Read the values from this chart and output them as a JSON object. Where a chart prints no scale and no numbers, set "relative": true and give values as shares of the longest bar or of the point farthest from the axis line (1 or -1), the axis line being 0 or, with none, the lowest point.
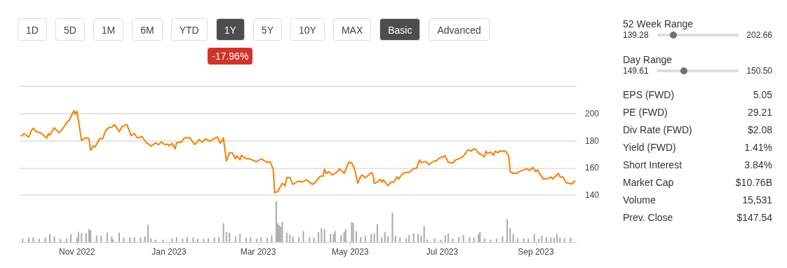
{
  "chart_data": [
    {
      "type": "line",
      "annotations": [
        "1D",
        "5D",
        "1M",
        "6M",
        "YTD",
        "1Y",
        "5Y",
        "10Y",
        "MAX",
        "Basic",
        "Advanced",
        "-17.96%"
      ],
      "x": [
        "2022-09-25",
        "2022-09-27",
        "2022-09-30",
        "2022-10-02",
        "2022-10-03",
        "2022-10-05",
        "2022-10-08",
        "2022-10-12",
        "2022-10-13",
        "2022-10-14",
        "2022-10-17",
        "2022-10-20",
        "2022-10-23",
        "2022-10-25",
        "2022-10-27",
        "2022-10-30",
        "2022-10-31",
        "2022-11-01",
        "2022-11-04",
        "2022-11-07",
        "2022-11-09",
        "2022-11-10",
        "2022-11-12",
        "2022-11-13",
        "2022-11-16",
        "2022-11-18",
        "2022-11-20",
        "2022-11-22",
        "2022-11-24",
        "2022-11-26",
        "2022-11-29",
        "2022-12-01",
        "2022-12-04",
        "2022-12-05",
        "2022-12-07",
        "2022-12-09",
        "2022-12-11",
        "2022-12-14",
        "2022-12-17",
        "2022-12-18",
        "2022-12-20",
        "2022-12-23",
        "2022-12-25",
        "2022-12-27",
        "2022-12-29",
        "2022-12-31",
        "2023-01-01",
        "2023-01-03",
        "2023-01-05",
        "2023-01-06",
        "2023-01-09",
        "2023-01-11",
        "2023-01-13",
        "2023-01-15",
        "2023-01-18",
        "2023-01-21",
        "2023-01-23",
        "2023-01-25",
        "2023-01-28",
        "2023-02-02",
        "2023-02-04",
        "2023-02-06",
        "2023-02-08",
        "2023-02-10",
        "2023-02-12",
        "2023-02-14",
        "2023-02-15",
        "2023-02-17",
        "2023-02-18",
        "2023-02-21",
        "2023-02-23",
        "2023-02-25",
        "2023-02-28",
        "2023-03-03",
        "2023-03-07",
        "2023-03-09",
        "2023-03-11",
        "2023-03-12",
        "2023-03-14",
        "2023-03-17",
        "2023-03-19",
        "2023-03-20",
        "2023-03-22",
        "2023-03-24",
        "2023-03-27",
        "2023-03-28",
        "2023-03-30",
        "2023-04-02",
        "2023-04-06",
        "2023-04-08",
        "2023-04-11",
        "2023-04-13",
        "2023-04-14",
        "2023-04-15",
        "2023-04-17",
        "2023-04-19",
        "2023-04-22",
        "2023-04-24",
        "2023-04-27",
        "2023-04-30",
        "2023-05-02",
        "2023-05-04",
        "2023-05-06",
        "2023-05-08",
        "2023-05-09",
        "2023-05-11",
        "2023-05-15",
        "2023-05-16",
        "2023-05-17",
        "2023-05-19",
        "2023-05-21",
        "2023-05-22",
        "2023-05-23",
        "2023-05-26",
        "2023-05-28",
        "2023-05-30",
        "2023-06-01",
        "2023-06-02",
        "2023-06-05",
        "2023-06-07",
        "2023-06-09",
        "2023-06-12",
        "2023-06-14",
        "2023-06-16",
        "2023-06-17",
        "2023-06-20",
        "2023-06-22",
        "2023-06-26",
        "2023-06-27",
        "2023-06-29",
        "2023-07-03",
        "2023-07-05",
        "2023-07-08",
        "2023-07-10",
        "2023-07-13",
        "2023-07-15",
        "2023-07-18",
        "2023-07-20",
        "2023-07-22",
        "2023-07-23",
        "2023-07-25",
        "2023-07-29",
        "2023-07-30",
        "2023-07-31",
        "2023-08-02",
        "2023-08-04",
        "2023-08-05",
        "2023-08-07",
        "2023-08-08",
        "2023-08-12",
        "2023-08-14",
        "2023-08-15",
        "2023-08-17",
        "2023-08-20",
        "2023-08-21",
        "2023-08-24",
        "2023-08-26",
        "2023-08-28",
        "2023-08-30",
        "2023-09-01",
        "2023-09-02",
        "2023-09-06",
        "2023-09-09",
        "2023-09-11",
        "2023-09-12",
        "2023-09-16",
        "2023-09-17",
        "2023-09-19",
        "2023-09-21",
        "2023-09-25",
        "2023-09-27"
      ],
      "series": [
        {
          "color": "#f77f00",
          "values": [
            183.1,
            185.2,
            182.6,
            187.8,
            189.1,
            186.6,
            185.7,
            181.9,
            185.3,
            184.0,
            189.5,
            185.7,
            189.5,
            193.1,
            195.2,
            202.1,
            199.5,
            201.6,
            180.2,
            182.2,
            181.4,
            172.8,
            176.2,
            175.3,
            181.4,
            181.4,
            187.4,
            189.5,
            190.0,
            191.7,
            186.6,
            190.5,
            191.9,
            189.1,
            183.6,
            185.3,
            181.9,
            183.1,
            178.3,
            177.9,
            175.9,
            178.4,
            177.1,
            179.1,
            177.1,
            177.4,
            176.2,
            177.9,
            174.1,
            178.4,
            178.8,
            181.9,
            182.2,
            181.9,
            177.1,
            180.9,
            178.8,
            181.4,
            179.5,
            182.8,
            177.9,
            181.9,
            165.0,
            171.0,
            171.0,
            166.7,
            168.8,
            165.9,
            169.3,
            166.7,
            166.7,
            165.9,
            164.5,
            166.7,
            164.1,
            164.5,
            159.0,
            141.7,
            142.6,
            148.6,
            146.9,
            152.9,
            152.9,
            147.8,
            149.8,
            150.3,
            149.5,
            151.2,
            147.8,
            149.5,
            153.8,
            153.8,
            159.0,
            156.0,
            157.2,
            154.7,
            156.7,
            159.3,
            156.0,
            164.1,
            163.6,
            159.0,
            148.6,
            153.8,
            154.7,
            152.6,
            156.4,
            155.5,
            148.6,
            149.5,
            151.7,
            149.5,
            151.2,
            146.9,
            149.5,
            149.5,
            153.4,
            151.7,
            156.0,
            156.7,
            156.7,
            159.5,
            159.8,
            165.9,
            163.8,
            164.7,
            162.4,
            165.3,
            165.0,
            167.1,
            168.8,
            164.1,
            163.6,
            165.9,
            167.1,
            168.5,
            173.3,
            172.3,
            174.0,
            173.7,
            171.0,
            168.1,
            172.3,
            170.6,
            171.6,
            169.3,
            172.3,
            171.0,
            172.4,
            172.3,
            168.8,
            157.2,
            156.0,
            156.0,
            157.2,
            158.5,
            159.3,
            158.1,
            160.3,
            157.2,
            158.5,
            151.7,
            152.1,
            153.3,
            151.7,
            155.9,
            153.3,
            153.3,
            149.2,
            148.1,
            150.7
          ]
        }
      ],
      "xlim": [
        "2022-09-24",
        "2023-09-28"
      ],
      "ylim": [
        140,
        220
      ],
      "yticks": [
        140,
        160,
        180,
        200,
        {
          "value": 220,
          "label": null
        }
      ],
      "grid": "y",
      "tick_labels": "y"
    },
    {
      "type": "bar",
      "relative": true,
      "color": "#aaaaaa",
      "x": [
        "2022-09-26",
        "2022-09-30",
        "2022-10-03",
        "2022-10-07",
        "2022-10-11",
        "2022-10-14",
        "2022-10-17",
        "2022-10-21",
        "2022-10-25",
        "2022-10-28",
        "2022-11-01",
        "2022-11-02",
        "2022-11-04",
        "2022-11-07",
        "2022-11-09",
        "2022-11-10",
        "2022-11-14",
        "2022-11-17",
        "2022-11-21",
        "2022-11-24",
        "2022-11-25",
        "2022-11-29",
        "2022-12-02",
        "2022-12-06",
        "2022-12-09",
        "2022-12-13",
        "2022-12-16",
        "2022-12-18",
        "2022-12-20",
        "2022-12-23",
        "2022-12-28",
        "2023-01-03",
        "2023-01-06",
        "2023-01-10",
        "2023-01-13",
        "2023-01-17",
        "2023-01-20",
        "2023-01-24",
        "2023-01-27",
        "2023-01-31",
        "2023-02-03",
        "2023-02-06",
        "2023-02-08",
        "2023-02-10",
        "2023-02-14",
        "2023-02-17",
        "2023-02-21",
        "2023-02-24",
        "2023-02-28",
        "2023-03-03",
        "2023-03-07",
        "2023-03-10",
        "2023-03-13",
        "2023-03-14",
        "2023-03-15",
        "2023-03-16",
        "2023-03-17",
        "2023-03-20",
        "2023-03-22",
        "2023-03-24",
        "2023-03-28",
        "2023-03-31",
        "2023-04-04",
        "2023-04-07",
        "2023-04-10",
        "2023-04-12",
        "2023-04-14",
        "2023-04-18",
        "2023-04-20",
        "2023-04-21",
        "2023-04-25",
        "2023-04-27",
        "2023-04-28",
        "2023-05-02",
        "2023-05-03",
        "2023-05-05",
        "2023-05-08",
        "2023-05-11",
        "2023-05-15",
        "2023-05-17",
        "2023-05-19",
        "2023-05-22",
        "2023-05-24",
        "2023-05-26",
        "2023-05-29",
        "2023-05-31",
        "2023-06-03",
        "2023-06-07",
        "2023-06-09",
        "2023-06-12",
        "2023-06-15",
        "2023-06-17",
        "2023-06-19",
        "2023-06-21",
        "2023-06-26",
        "2023-06-30",
        "2023-07-03",
        "2023-07-05",
        "2023-07-08",
        "2023-07-12",
        "2023-07-15",
        "2023-07-19",
        "2023-07-22",
        "2023-07-25",
        "2023-07-26",
        "2023-07-29",
        "2023-08-02",
        "2023-08-06",
        "2023-08-10",
        "2023-08-13",
        "2023-08-15",
        "2023-08-17",
        "2023-08-20",
        "2023-08-24",
        "2023-08-27",
        "2023-08-31",
        "2023-09-03",
        "2023-09-05",
        "2023-09-08",
        "2023-09-11",
        "2023-09-13",
        "2023-09-15",
        "2023-09-17",
        "2023-09-20",
        "2023-09-24"
      ],
      "values": [
        0.08,
        0.11,
        0.12,
        0.08,
        0.11,
        0.2,
        0.14,
        0.08,
        0.09,
        0.19,
        0.11,
        0.25,
        0.21,
        0.22,
        0.32,
        0.28,
        0.16,
        0.15,
        0.23,
        0.14,
        0.06,
        0.23,
        0.11,
        0.11,
        0.12,
        0.11,
        0.14,
        0.42,
        0.09,
        0.06,
        0.06,
        0.09,
        0.12,
        0.08,
        0.12,
        0.11,
        0.08,
        0.08,
        0.09,
        0.11,
        0.12,
        0.46,
        0.25,
        0.23,
        0.14,
        0.2,
        0.11,
        0.12,
        0.08,
        0.11,
        0.11,
        0.16,
        1,
        0.46,
        0.41,
        0.38,
        0.49,
        0.23,
        0.19,
        0.14,
        0.12,
        0.27,
        0.12,
        0.11,
        0.24,
        0.34,
        0.31,
        0.2,
        0.2,
        0.27,
        0.17,
        0.25,
        0.32,
        0.49,
        0.47,
        0.27,
        0.12,
        0.15,
        0.2,
        0.21,
        0.44,
        0.12,
        0.25,
        0.14,
        0.72,
        0.15,
        0.11,
        0.09,
        0.17,
        0.21,
        0.2,
        0.16,
        0.39,
        0.06,
        0.09,
        0.05,
        0.17,
        0.21,
        0.09,
        0.12,
        0.17,
        0.12,
        0.11,
        0.19,
        0.25,
        0.09,
        0.06,
        0.08,
        0.14,
        0.56,
        0.34,
        0.2,
        0.09,
        0.09,
        0.08,
        0.19,
        0.08,
        0.15,
        0.12,
        0.11,
        0.11,
        0.2,
        0.11,
        0.09,
        0.11
      ],
      "xlim": [
        "2022-09-24",
        "2023-09-28"
      ],
      "xticks": [
        {
          "value": "2022-11",
          "label": "Nov 2022"
        },
        {
          "value": "2023-01",
          "label": "Jan 2023"
        },
        {
          "value": "2023-03",
          "label": "Mar 2023"
        },
        {
          "value": "2023-05",
          "label": "May 2023"
        },
        {
          "value": "2023-07",
          "label": "Jul 2023"
        },
        {
          "value": "2023-09",
          "label": "Sep 2023"
        }
      ],
      "tick_labels": "x"
    },
    {
      "type": "other",
      "annotations": [
        "52 Week Range",
        "139.28",
        "202.66",
        "Day Range",
        "149.61",
        "150.50",
        "EPS (FWD)",
        "5.05",
        "PE (FWD)",
        "29.21",
        "Div Rate (FWD)",
        "$2.08",
        "Yield (FWD)",
        "1.41%",
        "Short Interest",
        "3.84%",
        "Market Cap",
        "$10.76B",
        "Volume",
        "15,531",
        "Prev. Close",
        "$147.54"
      ]
    }
  ]
}
